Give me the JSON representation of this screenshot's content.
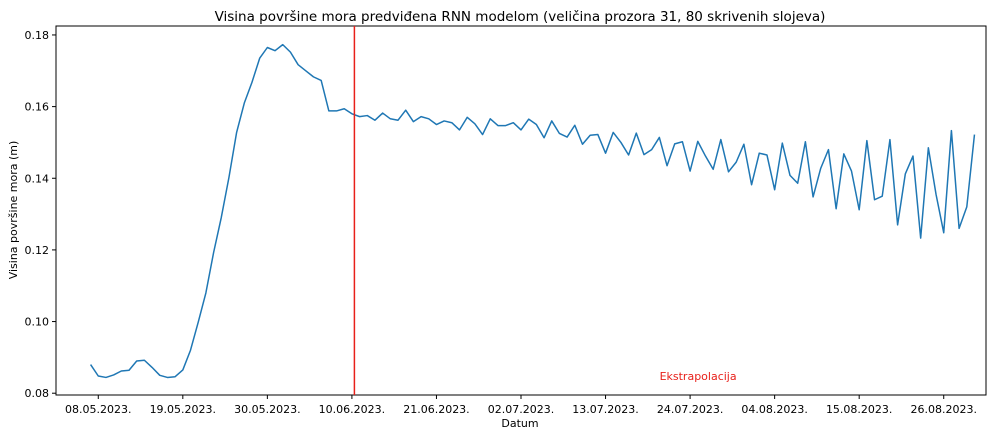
{
  "chart_data": {
    "type": "line",
    "title": "Visina površine mora predviđena RNN modelom (veličina prozora 31, 80 skrivenih slojeva)",
    "xlabel": "Datum",
    "ylabel": "Visina površine mora (m)",
    "x_tick_labels": [
      "08.05.2023.",
      "19.05.2023.",
      "30.05.2023.",
      "10.06.2023.",
      "21.06.2023.",
      "02.07.2023.",
      "13.07.2023.",
      "24.07.2023.",
      "04.08.2023.",
      "15.08.2023.",
      "26.08.2023."
    ],
    "y_ticks": [
      0.08,
      0.1,
      0.12,
      0.14,
      0.16,
      0.18
    ],
    "y_tick_labels": [
      "0.08",
      "0.10",
      "0.12",
      "0.14",
      "0.16",
      "0.18"
    ],
    "ylim": [
      0.0795,
      0.1825
    ],
    "xlim_days_from_first_tick": [
      -5.5,
      115.5
    ],
    "grid": false,
    "series_color": "#1f77b4",
    "vline": {
      "date": "10.06.2023.",
      "color": "#e8201a"
    },
    "annotation": {
      "text": "Ekstrapolacija",
      "color": "#e8201a"
    },
    "series": [
      {
        "x_start": "07.05.2023.",
        "x_step_days": 1,
        "values": [
          0.088,
          0.0848,
          0.0844,
          0.0851,
          0.0862,
          0.0864,
          0.089,
          0.0892,
          0.0872,
          0.085,
          0.0844,
          0.0846,
          0.0865,
          0.092,
          0.0998,
          0.108,
          0.1192,
          0.129,
          0.1402,
          0.1528,
          0.161,
          0.1668,
          0.1735,
          0.1765,
          0.1756,
          0.1773,
          0.1752,
          0.1717,
          0.17,
          0.1683,
          0.1673,
          0.1588,
          0.1588,
          0.1594,
          0.158,
          0.1572,
          0.1575,
          0.1562,
          0.1582,
          0.1566,
          0.1562,
          0.159,
          0.1558,
          0.1572,
          0.1566,
          0.155,
          0.156,
          0.1555,
          0.1535,
          0.157,
          0.1552,
          0.1522,
          0.1566,
          0.1547,
          0.1547,
          0.1555,
          0.1535,
          0.1565,
          0.155,
          0.1513,
          0.156,
          0.1525,
          0.1515,
          0.1548,
          0.1495,
          0.152,
          0.1522,
          0.147,
          0.1528,
          0.15,
          0.1465,
          0.1526,
          0.1466,
          0.148,
          0.1514,
          0.1435,
          0.1496,
          0.1502,
          0.142,
          0.1503,
          0.1462,
          0.1425,
          0.1508,
          0.1418,
          0.1445,
          0.1495,
          0.1382,
          0.147,
          0.1465,
          0.1368,
          0.1498,
          0.1408,
          0.1386,
          0.1502,
          0.1348,
          0.1428,
          0.148,
          0.1315,
          0.1468,
          0.142,
          0.1312,
          0.1505,
          0.134,
          0.135,
          0.1508,
          0.127,
          0.1412,
          0.1462,
          0.1233,
          0.1485,
          0.1355,
          0.1248,
          0.1533,
          0.126,
          0.132,
          0.1522
        ]
      }
    ]
  }
}
